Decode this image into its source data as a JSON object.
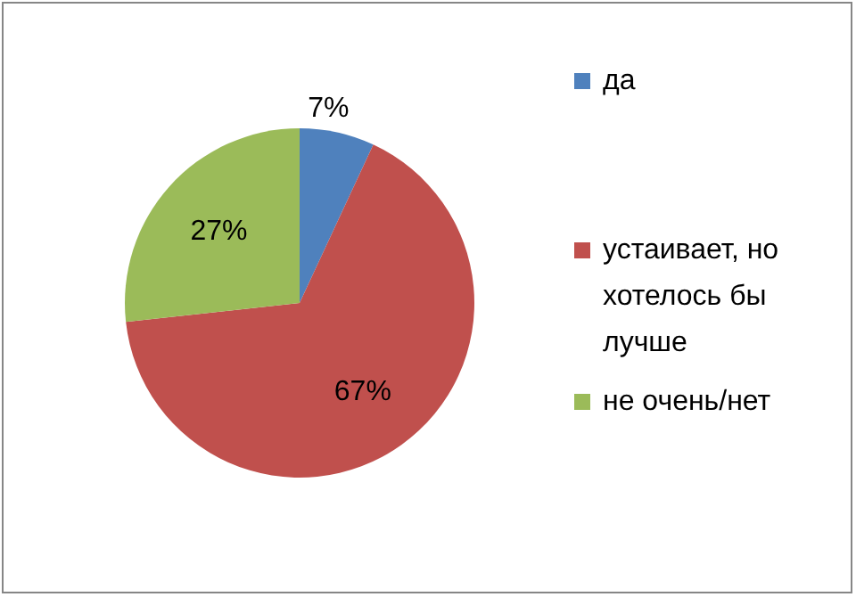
{
  "chart_data": {
    "type": "pie",
    "categories": [
      "да",
      "устаивает, но хотелось бы лучше",
      "не очень/нет"
    ],
    "values": [
      7,
      67,
      27
    ],
    "colors": [
      "#4f81bd",
      "#c0504d",
      "#9bbb59"
    ],
    "value_labels": [
      "7%",
      "67%",
      "27%"
    ],
    "legend": "right"
  }
}
